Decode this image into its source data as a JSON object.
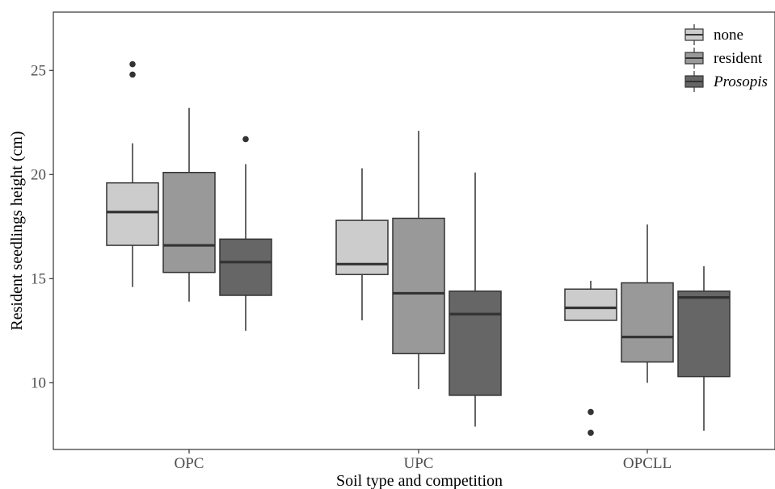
{
  "chart_data": {
    "type": "boxplot",
    "xlabel": "Soil type and competition",
    "ylabel": "Resident seedlings height (cm)",
    "categories": [
      "OPC",
      "UPC",
      "OPCLL"
    ],
    "yticks": [
      10,
      15,
      20,
      25
    ],
    "ylim": [
      6.8,
      27.8
    ],
    "grid": false,
    "legend_position": "top-right",
    "colors": {
      "none": "#cccccc",
      "resident": "#999999",
      "Prosopis": "#666666",
      "outline": "#333333"
    },
    "series": [
      {
        "name": "none",
        "color": "#cccccc",
        "boxes": [
          {
            "category": "OPC",
            "whisker_low": 14.6,
            "q1": 16.6,
            "median": 18.2,
            "q3": 19.6,
            "whisker_high": 21.5,
            "outliers": [
              24.8,
              25.3
            ]
          },
          {
            "category": "UPC",
            "whisker_low": 13.0,
            "q1": 15.2,
            "median": 15.7,
            "q3": 17.8,
            "whisker_high": 20.3,
            "outliers": []
          },
          {
            "category": "OPCLL",
            "whisker_low": 13.0,
            "q1": 13.0,
            "median": 13.6,
            "q3": 14.5,
            "whisker_high": 14.9,
            "outliers": [
              8.6,
              7.6
            ]
          }
        ]
      },
      {
        "name": "resident",
        "color": "#999999",
        "boxes": [
          {
            "category": "OPC",
            "whisker_low": 13.9,
            "q1": 15.3,
            "median": 16.6,
            "q3": 20.1,
            "whisker_high": 23.2,
            "outliers": []
          },
          {
            "category": "UPC",
            "whisker_low": 9.7,
            "q1": 11.4,
            "median": 14.3,
            "q3": 17.9,
            "whisker_high": 22.1,
            "outliers": []
          },
          {
            "category": "OPCLL",
            "whisker_low": 10.0,
            "q1": 11.0,
            "median": 12.2,
            "q3": 14.8,
            "whisker_high": 17.6,
            "outliers": []
          }
        ]
      },
      {
        "name": "Prosopis",
        "color": "#666666",
        "italic": true,
        "boxes": [
          {
            "category": "OPC",
            "whisker_low": 12.5,
            "q1": 14.2,
            "median": 15.8,
            "q3": 16.9,
            "whisker_high": 20.5,
            "outliers": [
              21.7
            ]
          },
          {
            "category": "UPC",
            "whisker_low": 7.9,
            "q1": 9.4,
            "median": 13.3,
            "q3": 14.4,
            "whisker_high": 20.1,
            "outliers": []
          },
          {
            "category": "OPCLL",
            "whisker_low": 7.7,
            "q1": 10.3,
            "median": 14.1,
            "q3": 14.4,
            "whisker_high": 15.6,
            "outliers": []
          }
        ]
      }
    ]
  }
}
